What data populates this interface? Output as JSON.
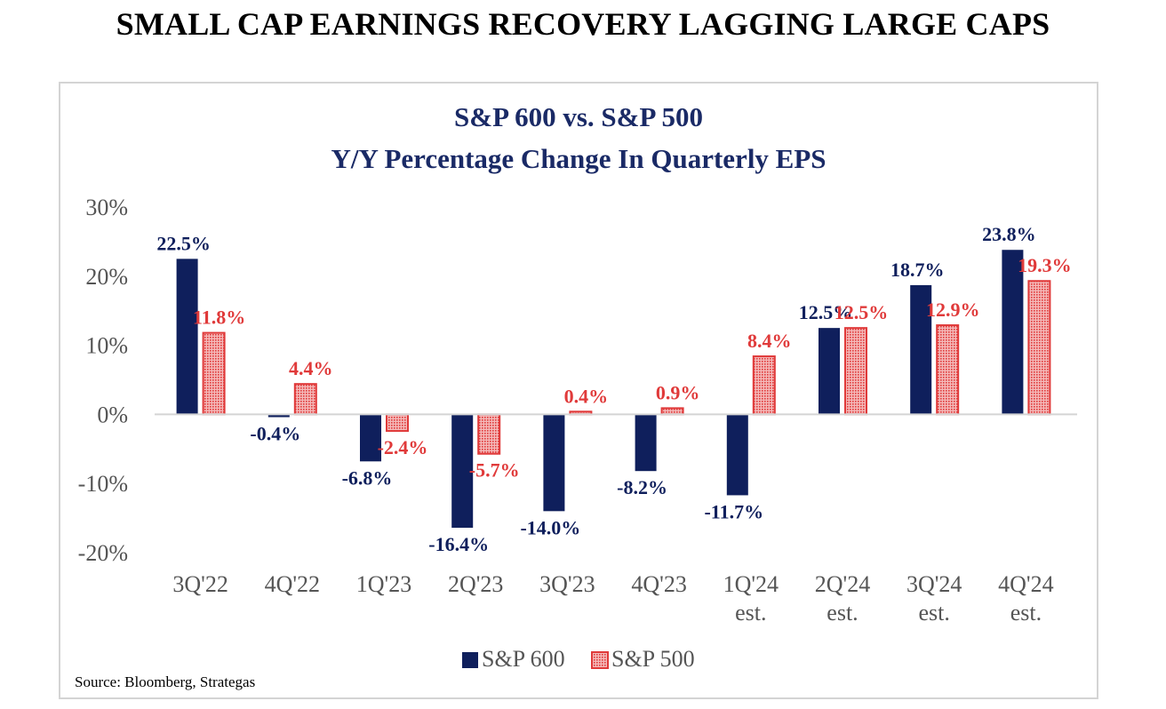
{
  "headline": "SMALL CAP EARNINGS RECOVERY LAGGING LARGE CAPS",
  "source": "Source: Bloomberg, Strategas",
  "chart_data": {
    "type": "bar",
    "title": "S&P 600 vs. S&P 500",
    "subtitle": "Y/Y Percentage Change In Quarterly EPS",
    "categories": [
      [
        "3Q'22"
      ],
      [
        "4Q'22"
      ],
      [
        "1Q'23"
      ],
      [
        "2Q'23"
      ],
      [
        "3Q'23"
      ],
      [
        "4Q'23"
      ],
      [
        "1Q'24",
        "est."
      ],
      [
        "2Q'24",
        "est."
      ],
      [
        "3Q'24",
        "est."
      ],
      [
        "4Q'24",
        "est."
      ]
    ],
    "series": [
      {
        "name": "S&P 600",
        "color": "#0f1f5c",
        "fill": "solid",
        "values": [
          22.5,
          -0.4,
          -6.8,
          -16.4,
          -14.0,
          -8.2,
          -11.7,
          12.5,
          18.7,
          23.8
        ],
        "labels": [
          "22.5%",
          "-0.4%",
          "-6.8%",
          "-16.4%",
          "-14.0%",
          "-8.2%",
          "-11.7%",
          "12.5%",
          "18.7%",
          "23.8%"
        ]
      },
      {
        "name": "S&P 500",
        "color": "#e03a3a",
        "fill": "dotted",
        "values": [
          11.8,
          4.4,
          -2.4,
          -5.7,
          0.4,
          0.9,
          8.4,
          12.5,
          12.9,
          19.3
        ],
        "labels": [
          "11.8%",
          "4.4%",
          "-2.4%",
          "-5.7%",
          "0.4%",
          "0.9%",
          "8.4%",
          "12.5%",
          "12.9%",
          "19.3%"
        ]
      }
    ],
    "yticks": [
      30,
      20,
      10,
      0,
      -10,
      -20
    ],
    "ytick_labels": [
      "30%",
      "20%",
      "10%",
      "0%",
      "-10%",
      "-20%"
    ],
    "ylim": [
      -20,
      30
    ],
    "grid": false,
    "legend": "bottom-center"
  }
}
